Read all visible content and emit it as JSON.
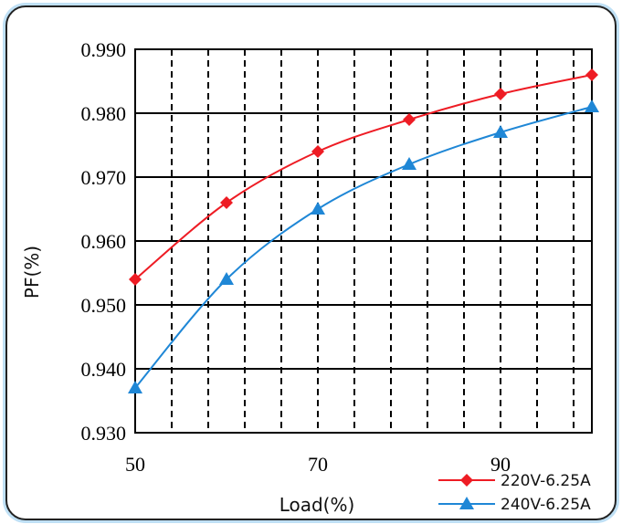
{
  "chart_data": {
    "type": "line",
    "title": "",
    "xlabel": "Load(%)",
    "ylabel": "PF(%)",
    "xlim": [
      50,
      100
    ],
    "ylim": [
      0.93,
      0.99
    ],
    "x_ticks": [
      50,
      70,
      90
    ],
    "x_tick_labels": [
      "50",
      "70",
      "90"
    ],
    "y_ticks": [
      0.93,
      0.94,
      0.95,
      0.96,
      0.97,
      0.98,
      0.99
    ],
    "y_tick_labels": [
      "0.930",
      "0.940",
      "0.950",
      "0.960",
      "0.970",
      "0.980",
      "0.990"
    ],
    "grid": {
      "x_minor_dashed_step": 4,
      "y_major_solid": true
    },
    "legend": "bottom-right",
    "x": [
      50,
      60,
      70,
      80,
      90,
      100
    ],
    "series": [
      {
        "name": "220V-6.25A",
        "color": "#ee1c24",
        "marker": "diamond",
        "values": [
          0.954,
          0.966,
          0.974,
          0.979,
          0.983,
          0.986
        ]
      },
      {
        "name": "240V-6.25A",
        "color": "#1f87d6",
        "marker": "triangle",
        "values": [
          0.937,
          0.954,
          0.965,
          0.972,
          0.977,
          0.981
        ]
      }
    ]
  }
}
